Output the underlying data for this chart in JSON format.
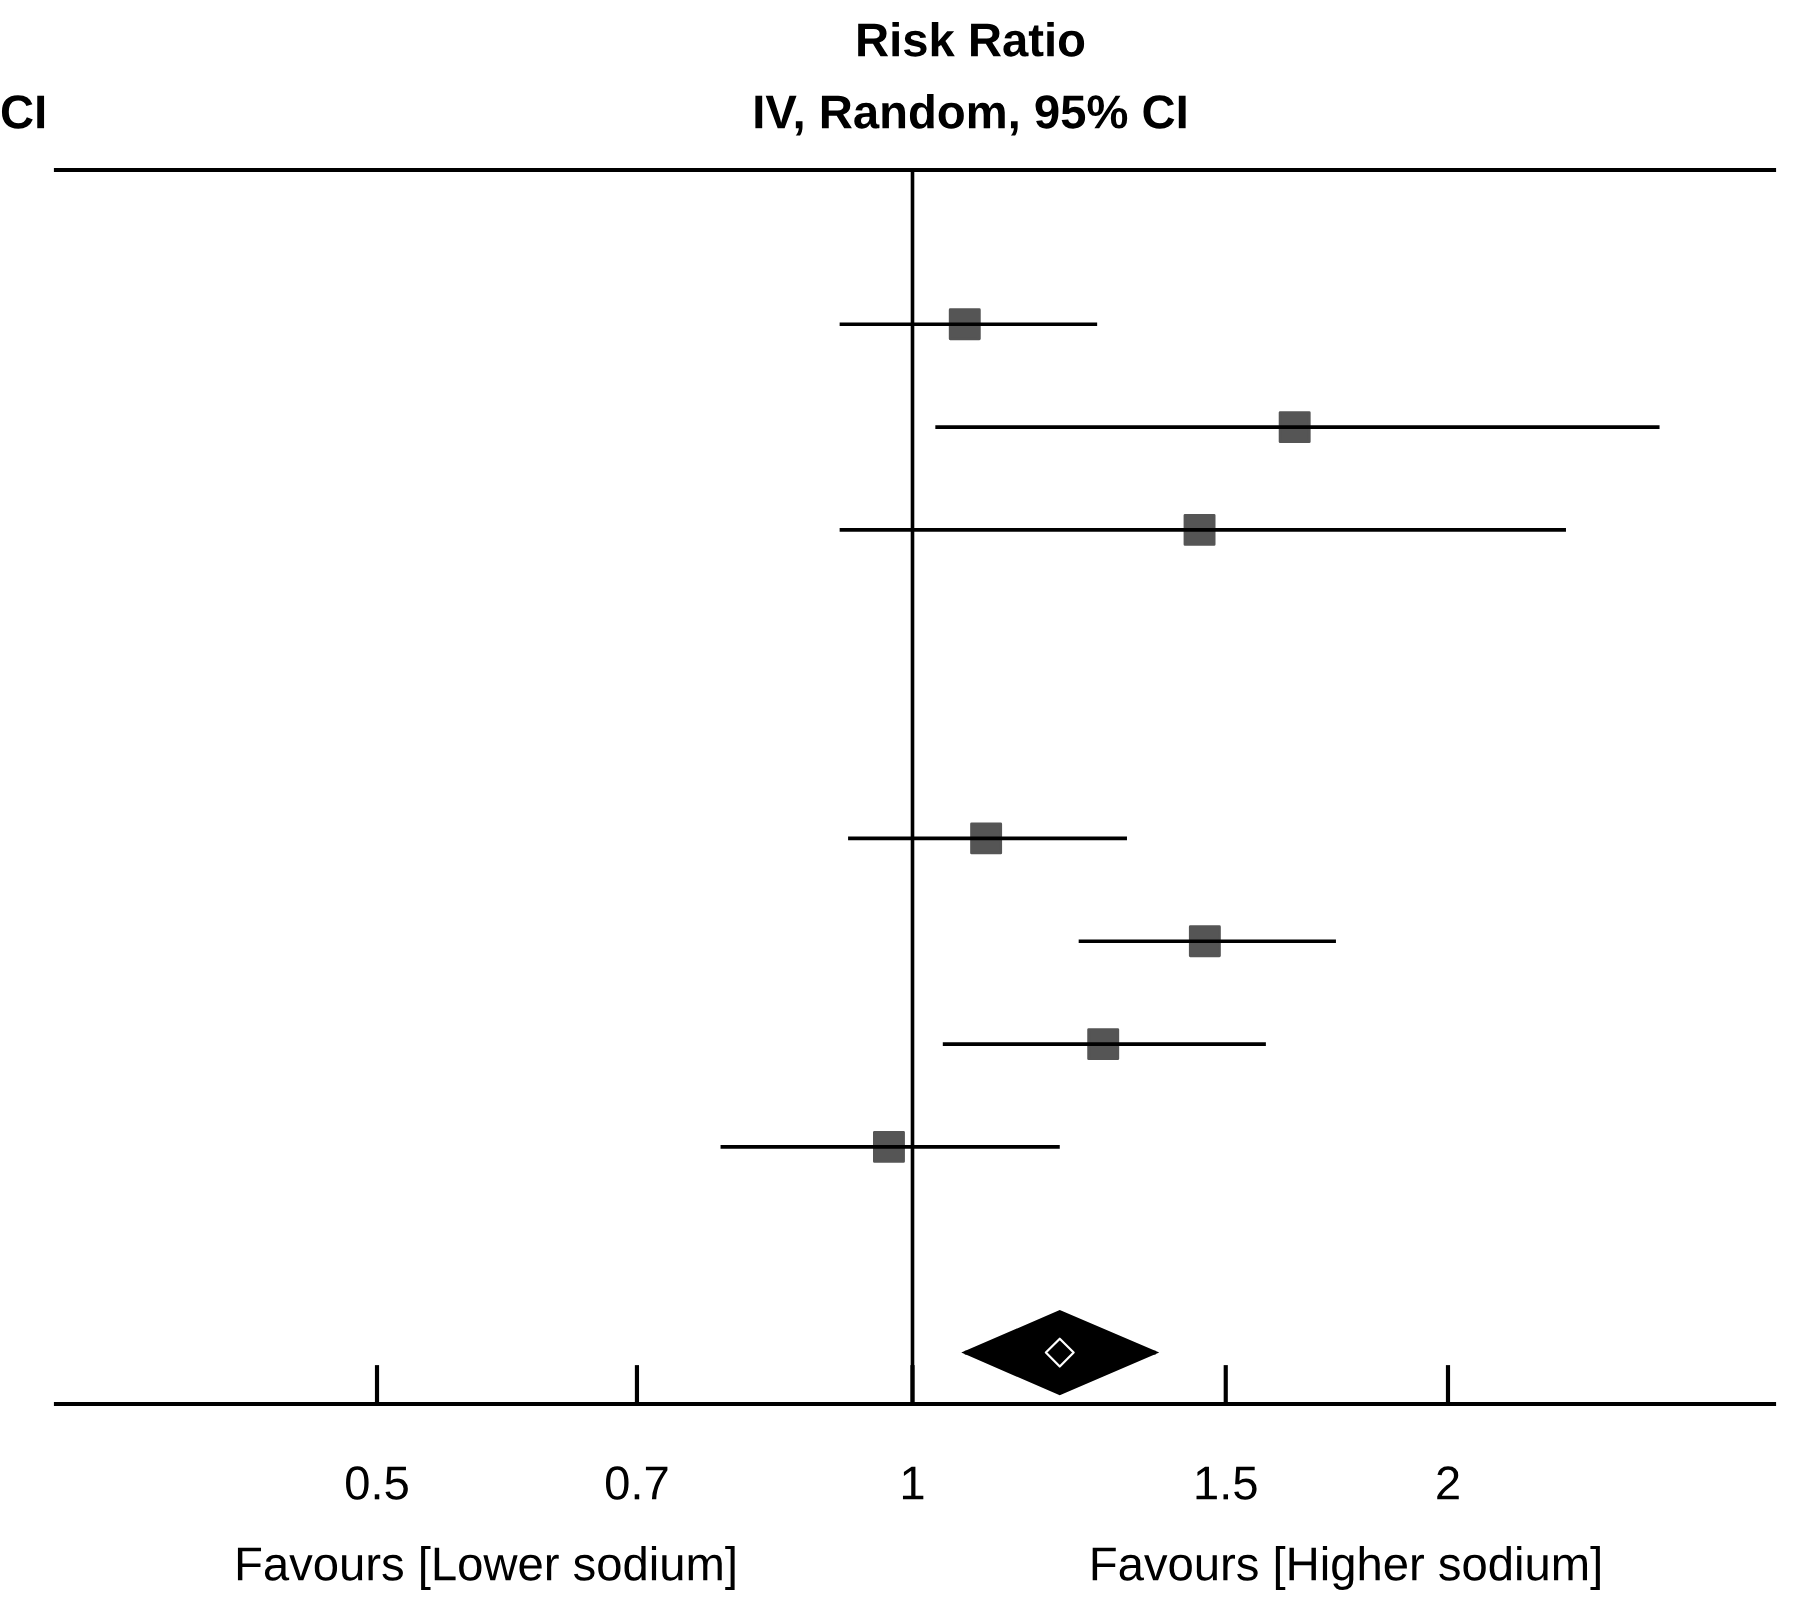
{
  "chart_data": {
    "type": "scatter",
    "title": "Risk Ratio",
    "subtitle": "IV, Random, 95% CI",
    "categories": [
      null,
      null,
      null,
      null,
      null,
      null,
      null,
      null,
      null,
      null,
      null,
      null
    ],
    "series": [
      {
        "color": "#555555",
        "marker": "square",
        "values": [
          null,
          1.07,
          1.64,
          1.45,
          null,
          null,
          1.1,
          1.46,
          1.28,
          0.97,
          null,
          null
        ],
        "errors": [
          null,
          [
            0.91,
            1.27
          ],
          [
            1.03,
            2.63
          ],
          [
            0.91,
            2.33
          ],
          null,
          null,
          [
            0.92,
            1.32
          ],
          [
            1.24,
            1.73
          ],
          [
            1.04,
            1.58
          ],
          [
            0.78,
            1.21
          ],
          null,
          null
        ]
      },
      {
        "color": "#000000",
        "marker": "diamond",
        "values": [
          null,
          null,
          null,
          null,
          null,
          null,
          null,
          null,
          null,
          null,
          null,
          1.21
        ],
        "errors": [
          null,
          null,
          null,
          null,
          null,
          null,
          null,
          null,
          null,
          null,
          null,
          [
            1.07,
            1.37
          ]
        ]
      }
    ],
    "orientation": "horizontal",
    "log": "x",
    "xlim": [
      0.33,
      3.05
    ],
    "xticks": [
      0.5,
      0.7,
      1,
      1.5,
      2
    ],
    "tick_labels": "x",
    "grid": false,
    "legend": false,
    "ref_lines": [
      {
        "axis": "x",
        "value": 1,
        "color": "#000000"
      }
    ],
    "annotations": [
      "CI",
      "Favours [Lower sodium]",
      "Favours [Higher sodium]"
    ]
  }
}
